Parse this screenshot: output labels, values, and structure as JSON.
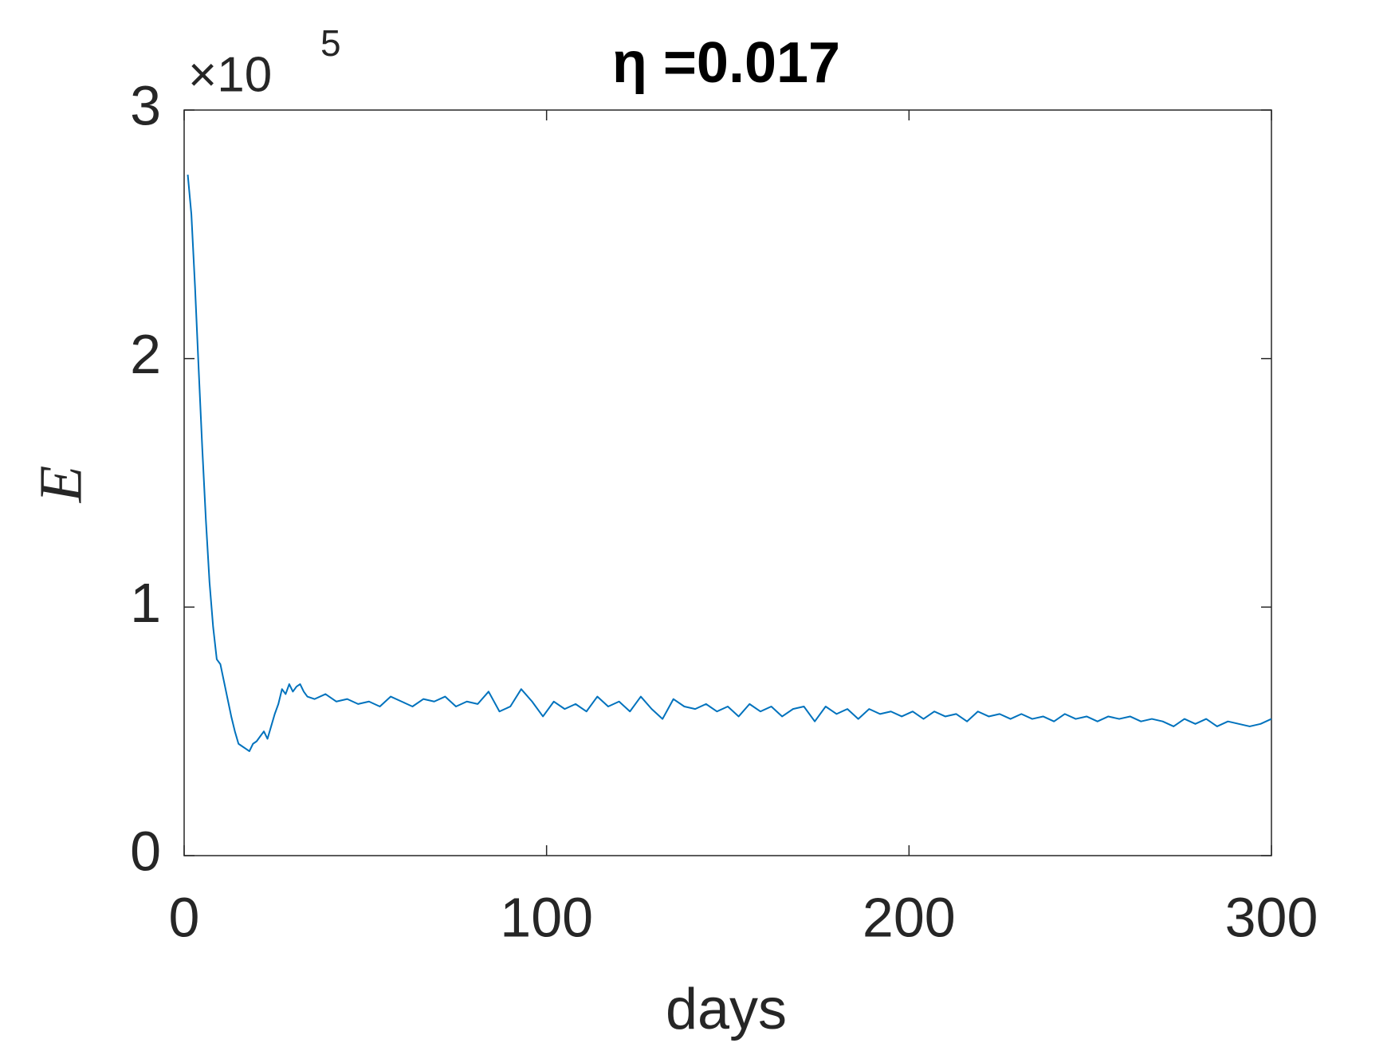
{
  "chart_data": {
    "type": "line",
    "title": "η =0.017",
    "xlabel": "days",
    "ylabel": "E",
    "y_multiplier": {
      "base": "×10",
      "exponent": "5"
    },
    "color": "#0072bd",
    "xlim": [
      0,
      300
    ],
    "xticks": [
      0,
      100,
      200,
      300
    ],
    "ylim": [
      0,
      3
    ],
    "yticks": [
      0,
      1,
      2,
      3
    ],
    "grid": false,
    "box": true,
    "x": [
      1,
      2,
      3,
      4,
      5,
      6,
      7,
      8,
      9,
      10,
      11,
      12,
      13,
      14,
      15,
      16,
      17,
      18,
      19,
      20,
      21,
      22,
      23,
      24,
      25,
      26,
      27,
      28,
      29,
      30,
      31,
      32,
      33,
      34,
      36,
      39,
      42,
      45,
      48,
      51,
      54,
      57,
      60,
      63,
      66,
      69,
      72,
      75,
      78,
      81,
      84,
      87,
      90,
      93,
      96,
      99,
      102,
      105,
      108,
      111,
      114,
      117,
      120,
      123,
      126,
      129,
      132,
      135,
      138,
      141,
      144,
      147,
      150,
      153,
      156,
      159,
      162,
      165,
      168,
      171,
      174,
      177,
      180,
      183,
      186,
      189,
      192,
      195,
      198,
      201,
      204,
      207,
      210,
      213,
      216,
      219,
      222,
      225,
      228,
      231,
      234,
      237,
      240,
      243,
      246,
      249,
      252,
      255,
      258,
      261,
      264,
      267,
      270,
      273,
      276,
      279,
      282,
      285,
      288,
      291,
      294,
      297,
      300
    ],
    "values": [
      2.74,
      2.58,
      2.29,
      1.96,
      1.64,
      1.35,
      1.1,
      0.92,
      0.79,
      0.77,
      0.7,
      0.63,
      0.56,
      0.5,
      0.45,
      0.44,
      0.43,
      0.42,
      0.45,
      0.46,
      0.48,
      0.5,
      0.47,
      0.52,
      0.57,
      0.61,
      0.67,
      0.65,
      0.69,
      0.66,
      0.68,
      0.69,
      0.66,
      0.64,
      0.63,
      0.65,
      0.62,
      0.63,
      0.61,
      0.62,
      0.6,
      0.64,
      0.62,
      0.6,
      0.63,
      0.62,
      0.64,
      0.6,
      0.62,
      0.61,
      0.66,
      0.58,
      0.6,
      0.67,
      0.62,
      0.56,
      0.62,
      0.59,
      0.61,
      0.58,
      0.64,
      0.6,
      0.62,
      0.58,
      0.64,
      0.59,
      0.55,
      0.63,
      0.6,
      0.59,
      0.61,
      0.58,
      0.6,
      0.56,
      0.61,
      0.58,
      0.6,
      0.56,
      0.59,
      0.6,
      0.54,
      0.6,
      0.57,
      0.59,
      0.55,
      0.59,
      0.57,
      0.58,
      0.56,
      0.58,
      0.55,
      0.58,
      0.56,
      0.57,
      0.54,
      0.58,
      0.56,
      0.57,
      0.55,
      0.57,
      0.55,
      0.56,
      0.54,
      0.57,
      0.55,
      0.56,
      0.54,
      0.56,
      0.55,
      0.56,
      0.54,
      0.55,
      0.54,
      0.52,
      0.55,
      0.53,
      0.55,
      0.52,
      0.54,
      0.53,
      0.52,
      0.53,
      0.55
    ]
  }
}
